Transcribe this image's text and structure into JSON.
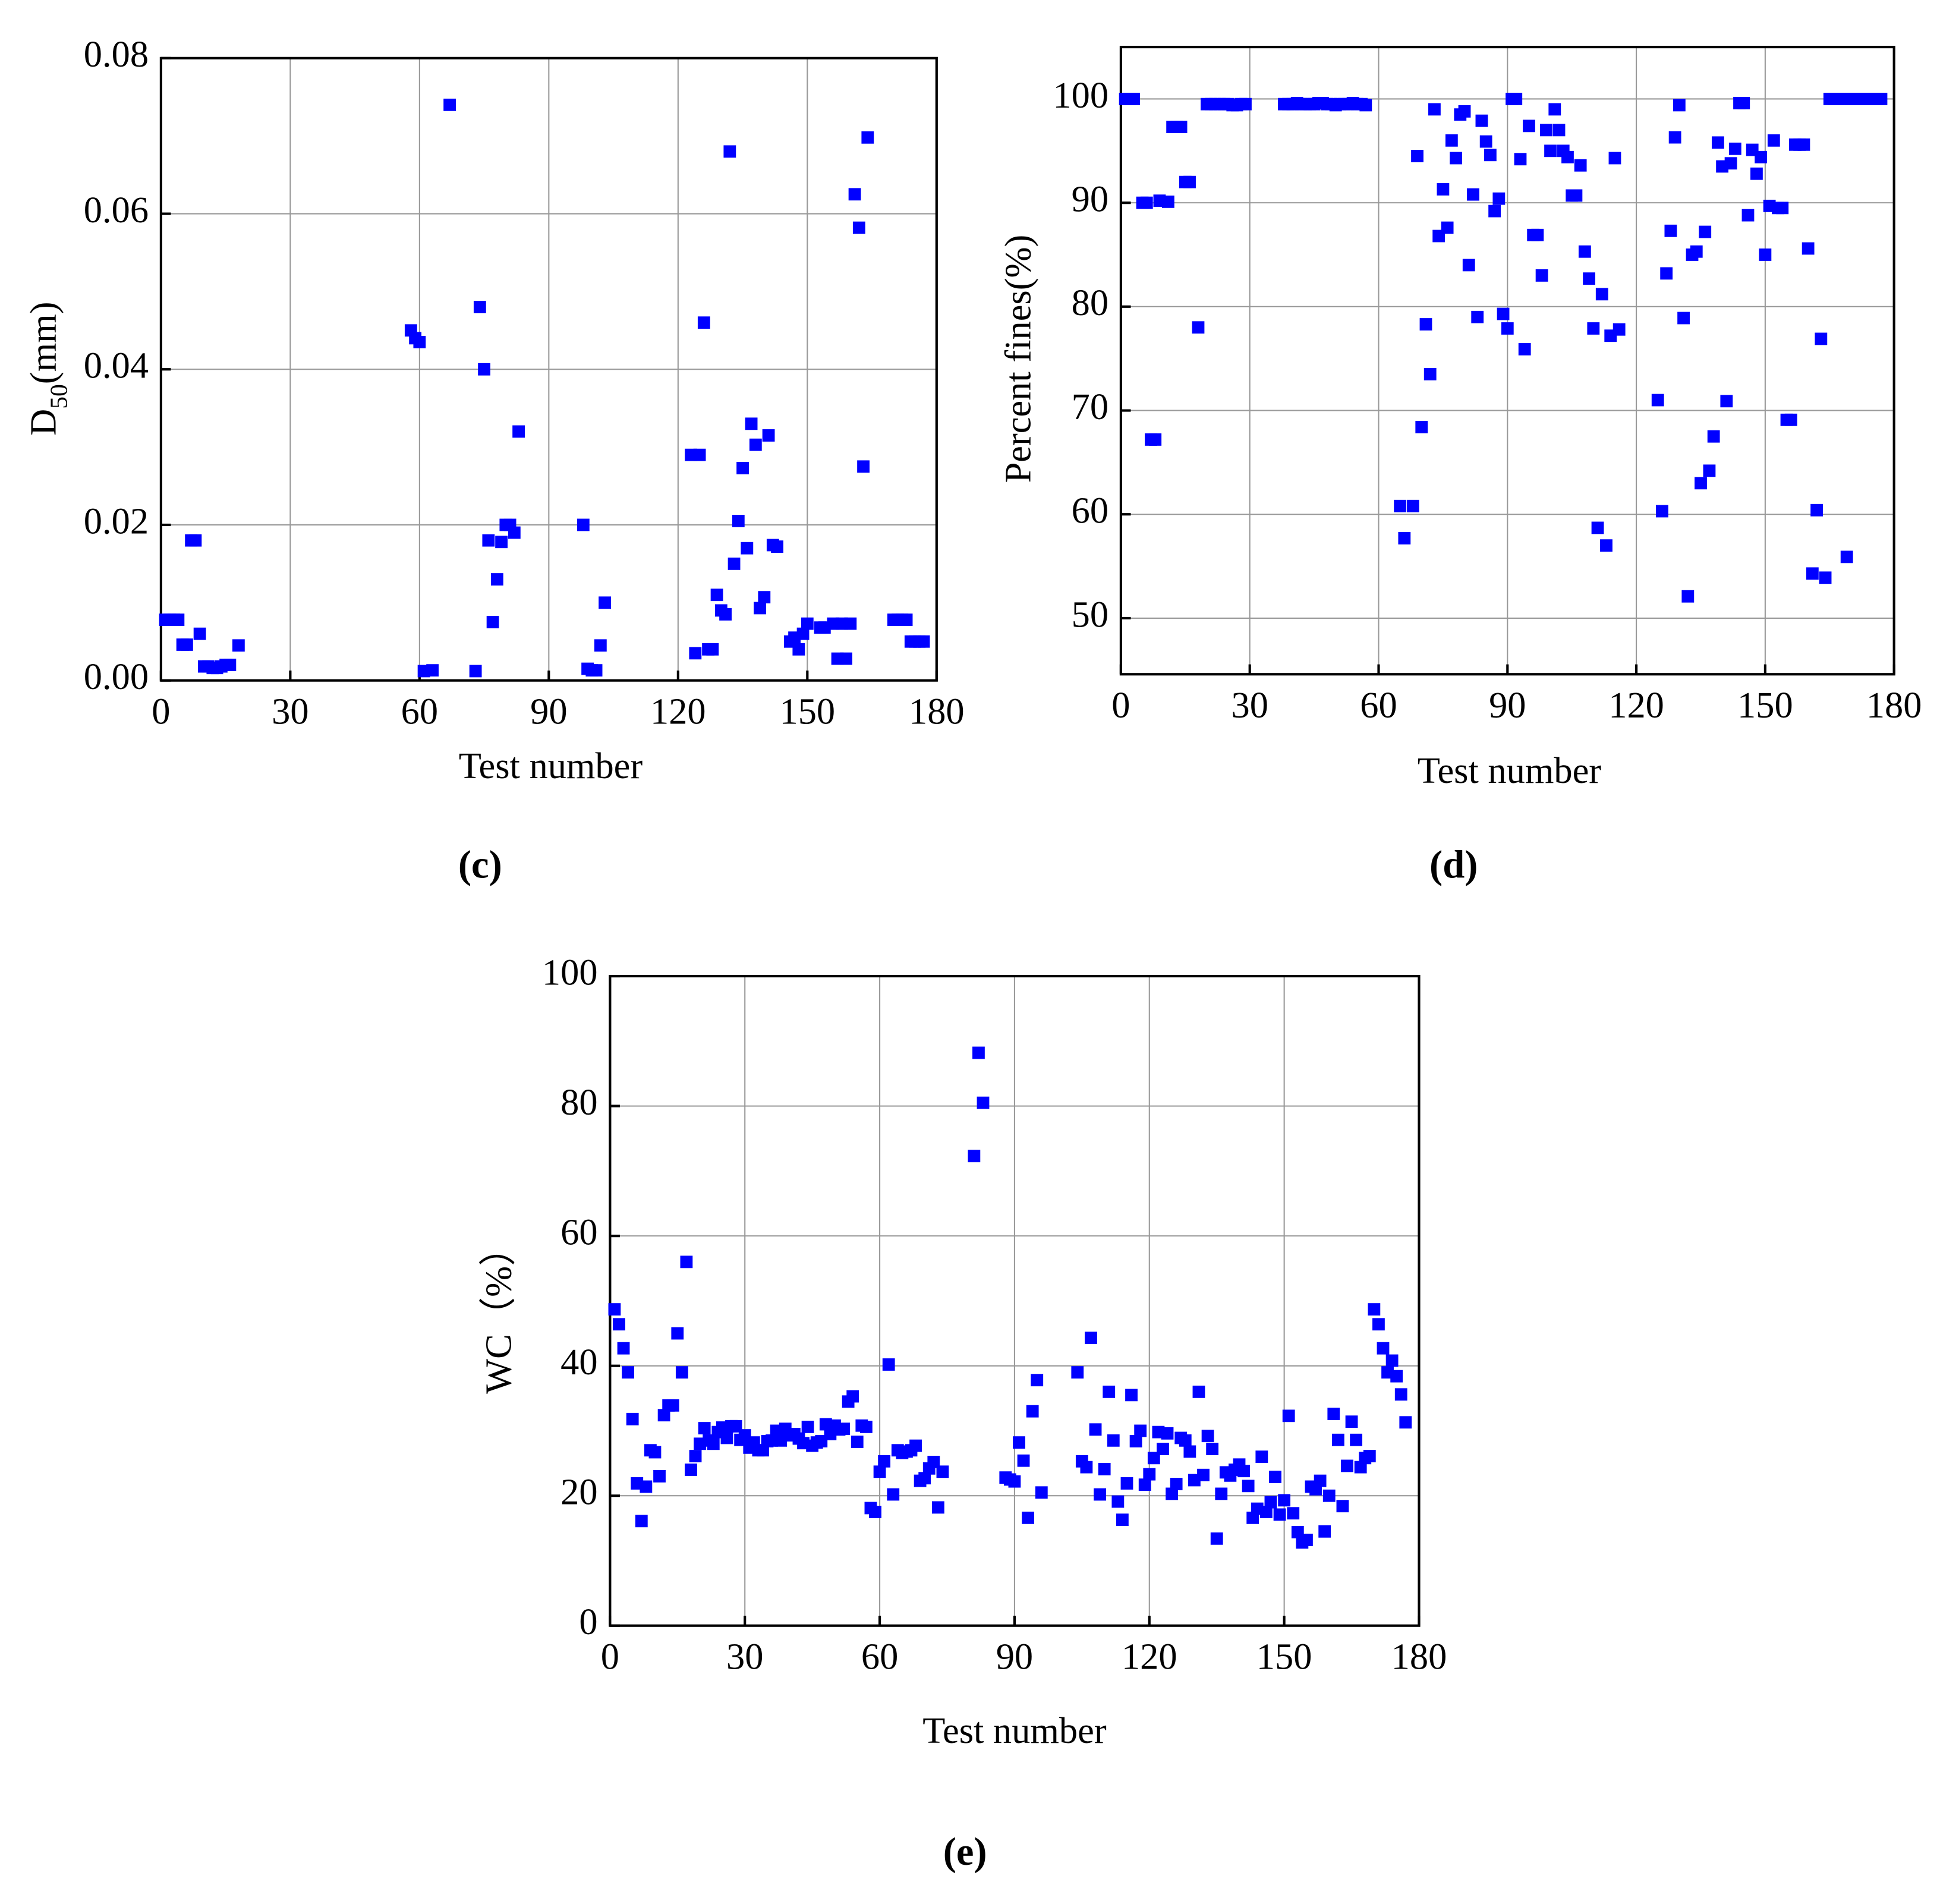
{
  "chart_data": [
    {
      "type": "scatter",
      "caption": "(c)",
      "xlabel": "Test number",
      "ylabel_parts": [
        {
          "text": "D"
        },
        {
          "text": "50",
          "subscript": true
        },
        {
          "text": "(mm)"
        }
      ],
      "xlim": [
        0,
        180
      ],
      "xticks": [
        0,
        30,
        60,
        90,
        120,
        150,
        180
      ],
      "ylim": [
        0,
        0.08
      ],
      "yticks": [
        {
          "value": 0,
          "label": "0.00"
        },
        {
          "value": 0.02,
          "label": "0.02"
        },
        {
          "value": 0.04,
          "label": "0.04"
        },
        {
          "value": 0.06,
          "label": "0.06"
        },
        {
          "value": 0.08,
          "label": "0.08"
        }
      ],
      "grid": true,
      "color": "#0000ff",
      "x": [
        1,
        2,
        3,
        4,
        5,
        6,
        7,
        8,
        9,
        10,
        11,
        12,
        13,
        14,
        15,
        16,
        18,
        58,
        59,
        60,
        61,
        63,
        67,
        73,
        74,
        75,
        76,
        77,
        78,
        79,
        80,
        81,
        82,
        83,
        98,
        99,
        100,
        101,
        102,
        103,
        123,
        124,
        125,
        126,
        127,
        128,
        129,
        130,
        131,
        132,
        133,
        134,
        135,
        136,
        137,
        138,
        139,
        140,
        141,
        142,
        143,
        146,
        147,
        148,
        149,
        150,
        153,
        154,
        156,
        157,
        158,
        159,
        160,
        161,
        162,
        163,
        164,
        170,
        171,
        172,
        173,
        174,
        175,
        176,
        177
      ],
      "values": [
        0.0078,
        0.0078,
        0.0078,
        0.0078,
        0.0046,
        0.0046,
        0.018,
        0.018,
        0.006,
        0.0018,
        0.0018,
        0.0016,
        0.0016,
        0.0018,
        0.002,
        0.002,
        0.0045,
        0.045,
        0.044,
        0.0435,
        0.0012,
        0.0013,
        0.074,
        0.0012,
        0.048,
        0.04,
        0.018,
        0.0075,
        0.013,
        0.0178,
        0.02,
        0.02,
        0.019,
        0.032,
        0.02,
        0.0015,
        0.0013,
        0.0013,
        0.0045,
        0.01,
        0.029,
        0.0035,
        0.029,
        0.046,
        0.004,
        0.004,
        0.011,
        0.009,
        0.0085,
        0.068,
        0.015,
        0.0205,
        0.0273,
        0.017,
        0.033,
        0.0303,
        0.0093,
        0.0107,
        0.0315,
        0.0174,
        0.0172,
        0.005,
        0.0055,
        0.004,
        0.006,
        0.0073,
        0.0068,
        0.0068,
        0.0073,
        0.0028,
        0.0073,
        0.0028,
        0.0073,
        0.0625,
        0.0582,
        0.0275,
        0.0698,
        0.0078,
        0.0078,
        0.0078,
        0.0078,
        0.005,
        0.005,
        0.005,
        0.005
      ]
    },
    {
      "type": "scatter",
      "caption": "(d)",
      "xlabel": "Test number",
      "ylabel_parts": [
        {
          "text": "Percent fines(%)"
        }
      ],
      "xlim": [
        0,
        180
      ],
      "xticks": [
        0,
        30,
        60,
        90,
        120,
        150,
        180
      ],
      "ylim": [
        44.6,
        105
      ],
      "yticks": [
        50,
        60,
        70,
        80,
        90,
        100
      ],
      "grid": true,
      "color": "#0000ff",
      "x": [
        1,
        2,
        3,
        5,
        6,
        7,
        8,
        9,
        11,
        12,
        13,
        14,
        15,
        16,
        18,
        20,
        21,
        22,
        23,
        24,
        25,
        26,
        27,
        28,
        29,
        38,
        39,
        40,
        41,
        42,
        43,
        44,
        45,
        46,
        47,
        48,
        49,
        50,
        51,
        52,
        53,
        54,
        55,
        56,
        57,
        65,
        66,
        68,
        69,
        70,
        71,
        72,
        73,
        74,
        75,
        76,
        77,
        78,
        79,
        80,
        81,
        82,
        83,
        84,
        85,
        86,
        87,
        88,
        89,
        90,
        91,
        92,
        93,
        94,
        95,
        96,
        97,
        98,
        99,
        100,
        101,
        102,
        103,
        104,
        105,
        106,
        107,
        108,
        109,
        110,
        111,
        112,
        113,
        114,
        115,
        116,
        125,
        126,
        127,
        128,
        129,
        130,
        131,
        132,
        133,
        134,
        135,
        136,
        137,
        138,
        139,
        140,
        141,
        142,
        143,
        144,
        145,
        146,
        147,
        148,
        149,
        150,
        151,
        152,
        153,
        154,
        155,
        156,
        157,
        158,
        159,
        160,
        161,
        162,
        163,
        164,
        165,
        166,
        167,
        168,
        169,
        170,
        171,
        172,
        173,
        174,
        175,
        176,
        177
      ],
      "values": [
        100,
        100,
        100,
        90,
        90,
        67.2,
        67.2,
        90.2,
        90.1,
        97.3,
        97.3,
        97.3,
        92,
        92,
        78,
        99.5,
        99.5,
        99.5,
        99.5,
        99.5,
        99.5,
        99.4,
        99.4,
        99.5,
        99.5,
        99.5,
        99.5,
        99.5,
        99.6,
        99.5,
        99.5,
        99.5,
        99.5,
        99.6,
        99.6,
        99.5,
        99.5,
        99.4,
        99.5,
        99.5,
        99.5,
        99.6,
        99.5,
        99.5,
        99.4,
        60.8,
        57.7,
        60.8,
        94.5,
        68.4,
        78.3,
        73.5,
        99,
        86.8,
        91.3,
        87.6,
        96,
        94.3,
        98.5,
        98.8,
        84,
        90.8,
        79,
        97.9,
        95.9,
        94.6,
        89.2,
        90.4,
        79.3,
        77.9,
        100,
        100,
        94.2,
        75.9,
        97.4,
        86.9,
        86.9,
        83,
        97,
        95,
        99,
        97,
        95,
        94.4,
        90.7,
        90.7,
        93.6,
        85.3,
        82.7,
        77.9,
        58.7,
        81.2,
        57,
        77.2,
        94.3,
        77.8,
        71,
        60.3,
        83.2,
        87.3,
        96.3,
        99.4,
        78.9,
        52.1,
        85,
        85.3,
        63,
        87.2,
        64.2,
        67.5,
        95.8,
        93.5,
        70.9,
        93.8,
        95.2,
        99.6,
        99.6,
        88.8,
        95.1,
        92.8,
        94.4,
        85,
        89.7,
        96,
        89.5,
        89.5,
        69.1,
        69.1,
        95.6,
        95.6,
        95.6,
        85.6,
        54.3,
        60.4,
        76.9,
        53.9,
        100,
        100,
        100,
        100,
        55.9,
        100,
        100,
        100,
        100,
        100,
        100,
        100,
        100
      ]
    },
    {
      "type": "scatter",
      "caption": "(e)",
      "xlabel": "Test number",
      "ylabel_parts": [
        {
          "text": "WC（%）"
        }
      ],
      "xlim": [
        0,
        180
      ],
      "xticks": [
        0,
        30,
        60,
        90,
        120,
        150,
        180
      ],
      "ylim": [
        0,
        100
      ],
      "yticks": [
        0,
        20,
        40,
        60,
        80,
        100
      ],
      "grid": true,
      "color": "#0000ff",
      "x": [
        1,
        2,
        3,
        4,
        5,
        6,
        7,
        8,
        9,
        10,
        11,
        12,
        13,
        14,
        15,
        16,
        17,
        18,
        19,
        20,
        21,
        22,
        23,
        24,
        25,
        26,
        27,
        28,
        29,
        30,
        31,
        32,
        33,
        34,
        35,
        36,
        37,
        38,
        39,
        40,
        41,
        42,
        43,
        44,
        45,
        46,
        47,
        48,
        49,
        50,
        51,
        52,
        53,
        54,
        55,
        56,
        57,
        58,
        59,
        60,
        61,
        62,
        63,
        64,
        65,
        66,
        67,
        68,
        69,
        70,
        71,
        72,
        73,
        74,
        81,
        82,
        83,
        88,
        89,
        90,
        91,
        92,
        93,
        94,
        95,
        96,
        104,
        105,
        106,
        107,
        108,
        109,
        110,
        111,
        112,
        113,
        114,
        115,
        116,
        117,
        118,
        119,
        120,
        121,
        122,
        123,
        124,
        125,
        126,
        127,
        128,
        129,
        130,
        131,
        132,
        133,
        134,
        135,
        136,
        137,
        138,
        139,
        140,
        141,
        142,
        143,
        144,
        145,
        146,
        147,
        148,
        149,
        150,
        151,
        152,
        153,
        154,
        155,
        156,
        157,
        158,
        159,
        160,
        161,
        162,
        163,
        164,
        165,
        166,
        167,
        168,
        169,
        170,
        171,
        172,
        173,
        174,
        175,
        176,
        177
      ],
      "values": [
        48.7,
        46.4,
        42.7,
        39,
        31.8,
        21.9,
        16.1,
        21.4,
        27,
        26.7,
        23,
        32.4,
        33.9,
        33.9,
        45,
        39,
        56,
        24,
        26.1,
        28,
        30.4,
        28.5,
        28,
        29.8,
        30.5,
        28.9,
        30.7,
        30.7,
        28.6,
        29.3,
        27.4,
        28.2,
        27,
        27,
        28.4,
        28.5,
        30,
        28.5,
        30.3,
        29.3,
        29.5,
        28.8,
        28.1,
        30.6,
        27.7,
        28.2,
        28.4,
        31,
        29.5,
        30.8,
        30.2,
        30.3,
        34.5,
        35.3,
        28.3,
        30.8,
        30.6,
        18.1,
        17.5,
        23.7,
        25.3,
        40.2,
        20.2,
        27,
        26.6,
        26.8,
        27,
        27.7,
        22.3,
        22.7,
        24.2,
        25.2,
        18.2,
        23.7,
        72.3,
        88.2,
        80.5,
        22.8,
        22.5,
        22.2,
        28.2,
        25.4,
        16.6,
        33,
        37.8,
        20.5,
        39,
        25.3,
        24.4,
        44.3,
        30.2,
        20.2,
        24.1,
        36,
        28.5,
        19.1,
        16.3,
        21.9,
        35.5,
        28.4,
        30,
        21.7,
        23.3,
        25.8,
        29.8,
        27.2,
        29.6,
        20.3,
        21.8,
        28.9,
        28.5,
        26.8,
        22.4,
        36,
        23.2,
        29.2,
        27.2,
        13.4,
        20.3,
        23.6,
        23.1,
        24,
        24.8,
        23.8,
        21.5,
        16.6,
        18,
        26,
        17.5,
        19,
        22.9,
        17.1,
        19.3,
        32.3,
        17.3,
        14.4,
        12.8,
        13.2,
        21.4,
        21,
        22.3,
        14.5,
        20,
        32.6,
        28.6,
        18.4,
        24.6,
        31.4,
        28.6,
        24.4,
        25.8,
        26.1,
        48.7,
        46.4,
        42.7,
        39,
        40.8,
        38.4,
        35.6,
        31.3
      ]
    }
  ]
}
